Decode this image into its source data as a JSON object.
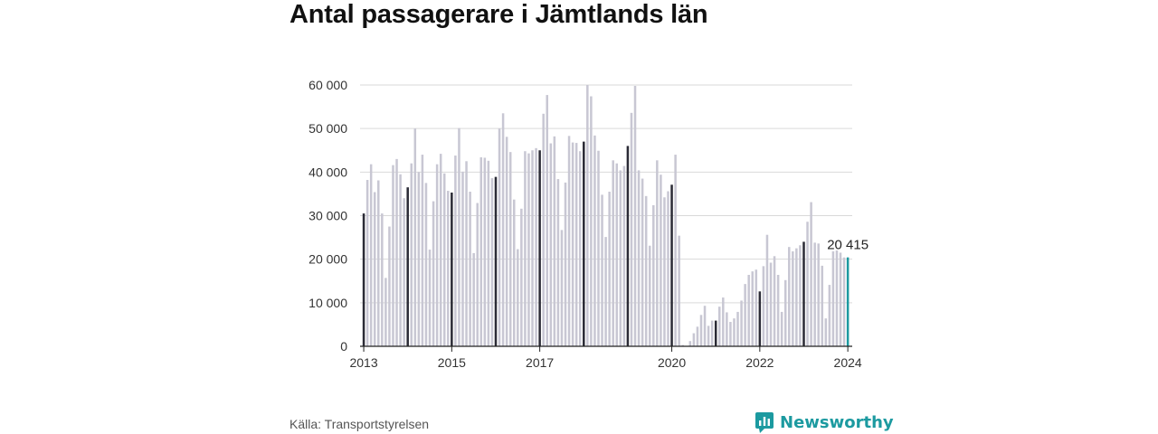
{
  "title": "Antal passagerare i Jämtlands län",
  "source": "Källa: Transportstyrelsen",
  "brand": {
    "name": "Newsworthy",
    "icon": "newsworthy-chart-logo-icon"
  },
  "colors": {
    "bar": "#c8c7d3",
    "january": "#2b2b36",
    "latest": "#1c9aa0",
    "grid": "#d9d9d9",
    "axis": "#222222",
    "brand": "#1c9aa0"
  },
  "chart_data": {
    "type": "bar",
    "title": "Antal passagerare i Jämtlands län",
    "xlabel": "",
    "ylabel": "",
    "ylim": [
      0,
      60000
    ],
    "yticks": [
      0,
      10000,
      20000,
      30000,
      40000,
      50000,
      60000
    ],
    "ytick_labels": [
      "0",
      "10 000",
      "20 000",
      "30 000",
      "40 000",
      "50 000",
      "60 000"
    ],
    "xtick_labels": [
      "2013",
      "2015",
      "2017",
      "2020",
      "2022",
      "2024"
    ],
    "start_month": "2013-01",
    "end_month": "2024-01",
    "highlight": "january",
    "grid": true,
    "last_value_label": "20 415",
    "values": [
      30500,
      38200,
      41800,
      35400,
      38100,
      30500,
      15700,
      27500,
      41600,
      43000,
      39500,
      34000,
      36500,
      42000,
      50000,
      40000,
      44000,
      37500,
      22200,
      33300,
      41800,
      44200,
      39700,
      35700,
      35300,
      43800,
      50100,
      40100,
      42500,
      35500,
      21400,
      32900,
      43400,
      43300,
      42600,
      38600,
      38900,
      50000,
      53500,
      48100,
      44600,
      33700,
      22300,
      31600,
      44800,
      44300,
      45000,
      45500,
      45000,
      53400,
      57700,
      46600,
      48200,
      38400,
      26700,
      37600,
      48300,
      46800,
      46700,
      44800,
      47000,
      60000,
      57400,
      48400,
      44900,
      34800,
      25100,
      35500,
      42700,
      42000,
      40400,
      41400,
      46000,
      53600,
      59800,
      40400,
      38500,
      34500,
      23100,
      32400,
      42700,
      39400,
      34200,
      35600,
      37100,
      44000,
      25400,
      300,
      100,
      1200,
      3000,
      4500,
      7200,
      9300,
      4700,
      5900,
      5900,
      9100,
      11200,
      7800,
      5600,
      6400,
      7900,
      10500,
      14300,
      16400,
      17200,
      17600,
      12600,
      18400,
      25600,
      19200,
      20700,
      16400,
      7900,
      15200,
      22800,
      21800,
      22500,
      23200,
      24000,
      28600,
      33100,
      23800,
      23600,
      18500,
      6400,
      14100,
      21800,
      22000,
      21500,
      20400,
      20415
    ]
  }
}
